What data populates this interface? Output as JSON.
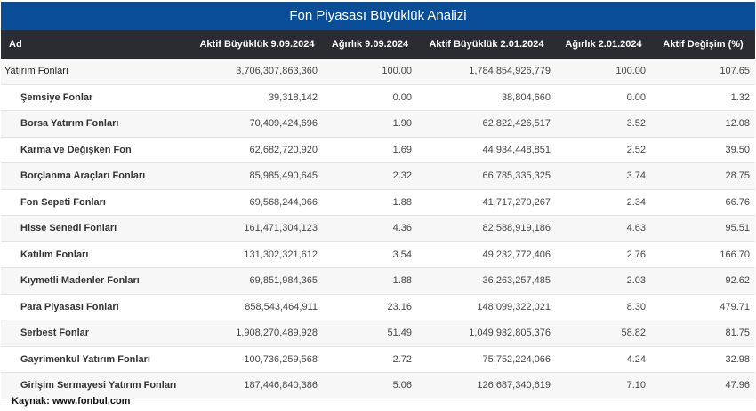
{
  "title": "Fon Piyasası Büyüklük Analizi",
  "columns": [
    "Ad",
    "Aktif Büyüklük 9.09.2024",
    "Ağırlık 9.09.2024",
    "Aktif Büyüklük 2.01.2024",
    "Ağırlık 2.01.2024",
    "Aktif Değişim (%)"
  ],
  "rows": [
    [
      "Yatırım Fonları",
      "3,706,307,863,360",
      "100.00",
      "1,784,854,926,779",
      "100.00",
      "107.65"
    ],
    [
      "Şemsiye Fonlar",
      "39,318,142",
      "0.00",
      "38,804,660",
      "0.00",
      "1.32"
    ],
    [
      "Borsa Yatırım Fonları",
      "70,409,424,696",
      "1.90",
      "62,822,426,517",
      "3.52",
      "12.08"
    ],
    [
      "Karma ve Değişken Fon",
      "62,682,720,920",
      "1.69",
      "44,934,448,851",
      "2.52",
      "39.50"
    ],
    [
      "Borçlanma Araçları Fonları",
      "85,985,490,645",
      "2.32",
      "66,785,335,325",
      "3.74",
      "28.75"
    ],
    [
      "Fon Sepeti Fonları",
      "69,568,244,066",
      "1.88",
      "41,717,270,267",
      "2.34",
      "66.76"
    ],
    [
      "Hisse Senedi Fonları",
      "161,471,304,123",
      "4.36",
      "82,588,919,186",
      "4.63",
      "95.51"
    ],
    [
      "Katılım Fonları",
      "131,302,321,612",
      "3.54",
      "49,232,772,406",
      "2.76",
      "166.70"
    ],
    [
      "Kıymetli Madenler Fonları",
      "69,851,984,365",
      "1.88",
      "36,263,257,485",
      "2.03",
      "92.62"
    ],
    [
      "Para Piyasası Fonları",
      "858,543,464,911",
      "23.16",
      "148,099,322,021",
      "8.30",
      "479.71"
    ],
    [
      "Serbest Fonlar",
      "1,908,270,489,928",
      "51.49",
      "1,049,932,805,376",
      "58.82",
      "81.75"
    ],
    [
      "Gayrimenkul Yatırım Fonları",
      "100,736,259,568",
      "2.72",
      "75,752,224,066",
      "4.24",
      "32.98"
    ],
    [
      "Girişim Sermayesi Yatırım Fonları",
      "187,446,840,386",
      "5.06",
      "126,687,340,619",
      "7.10",
      "47.96"
    ]
  ],
  "source": "Kaynak: www.fonbul.com",
  "colors": {
    "title_bar": "#0b4e98",
    "header": "#2b2c32"
  }
}
